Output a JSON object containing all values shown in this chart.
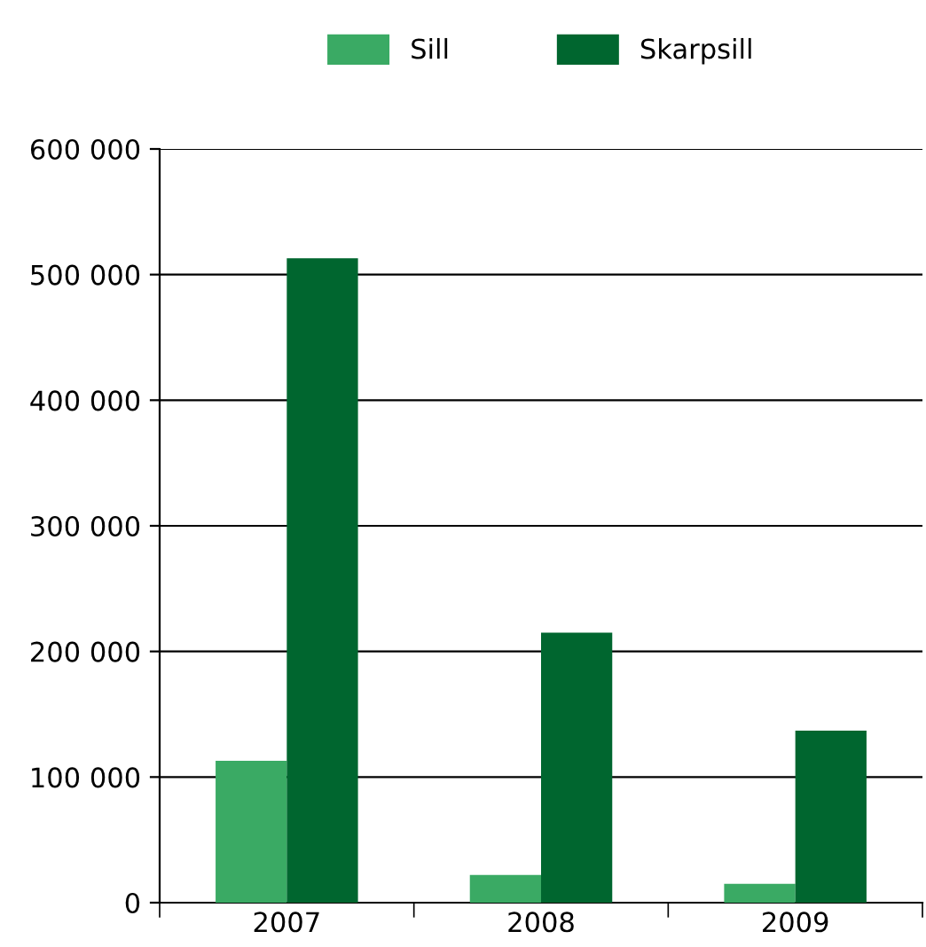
{
  "chart_data": {
    "type": "bar",
    "categories": [
      "2007",
      "2008",
      "2009"
    ],
    "series": [
      {
        "name": "Sill",
        "color": "#3aaa64",
        "values": [
          113000,
          22000,
          15000
        ]
      },
      {
        "name": "Skarpsill",
        "color": "#00662f",
        "values": [
          513000,
          215000,
          137000
        ]
      }
    ],
    "ylim": [
      0,
      600000
    ],
    "yticks": [
      {
        "value": 0,
        "label": "0"
      },
      {
        "value": 100000,
        "label": "100 000"
      },
      {
        "value": 200000,
        "label": "200 000"
      },
      {
        "value": 300000,
        "label": "300 000"
      },
      {
        "value": 400000,
        "label": "400 000"
      },
      {
        "value": 500000,
        "label": "500 000"
      },
      {
        "value": 600000,
        "label": "600 000"
      }
    ],
    "grid": "y",
    "legend": "top"
  }
}
